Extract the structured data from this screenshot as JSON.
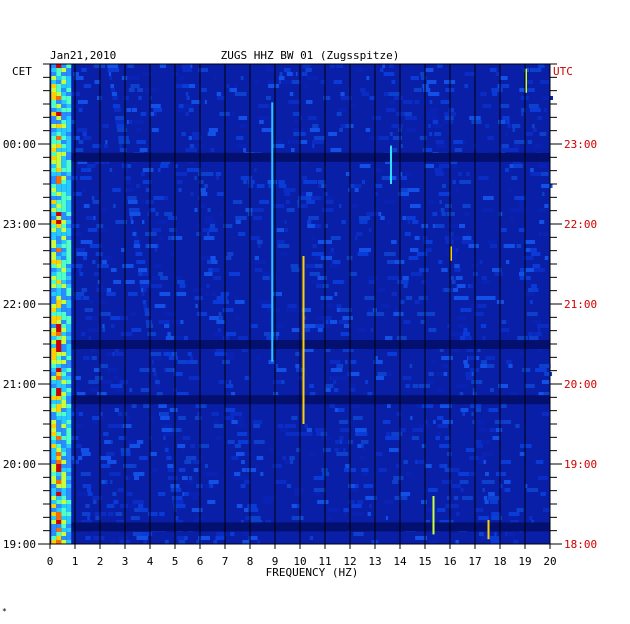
{
  "chart_data": {
    "type": "heatmap",
    "date": "Jan21,2010",
    "title": "ZUGS HHZ BW 01 (Zugsspitze)",
    "left_timezone": "CET",
    "right_timezone": "UTC",
    "xlabel": "FREQUENCY (HZ)",
    "xlim": [
      0,
      20
    ],
    "x_ticks": [
      "0",
      "1",
      "2",
      "3",
      "4",
      "5",
      "6",
      "7",
      "8",
      "9",
      "10",
      "11",
      "12",
      "13",
      "14",
      "15",
      "16",
      "17",
      "18",
      "19",
      "20"
    ],
    "left_ticks": [
      "00:00",
      "23:00",
      "22:00",
      "21:00",
      "20:00",
      "19:00"
    ],
    "right_ticks": [
      "23:00",
      "22:00",
      "21:00",
      "20:00",
      "19:00",
      "18:00"
    ],
    "colors": {
      "background": "#0a1fa8",
      "dark_band": "#031070",
      "grid": "#000000",
      "utc_text": "#cc0000"
    },
    "footnote": "*"
  }
}
